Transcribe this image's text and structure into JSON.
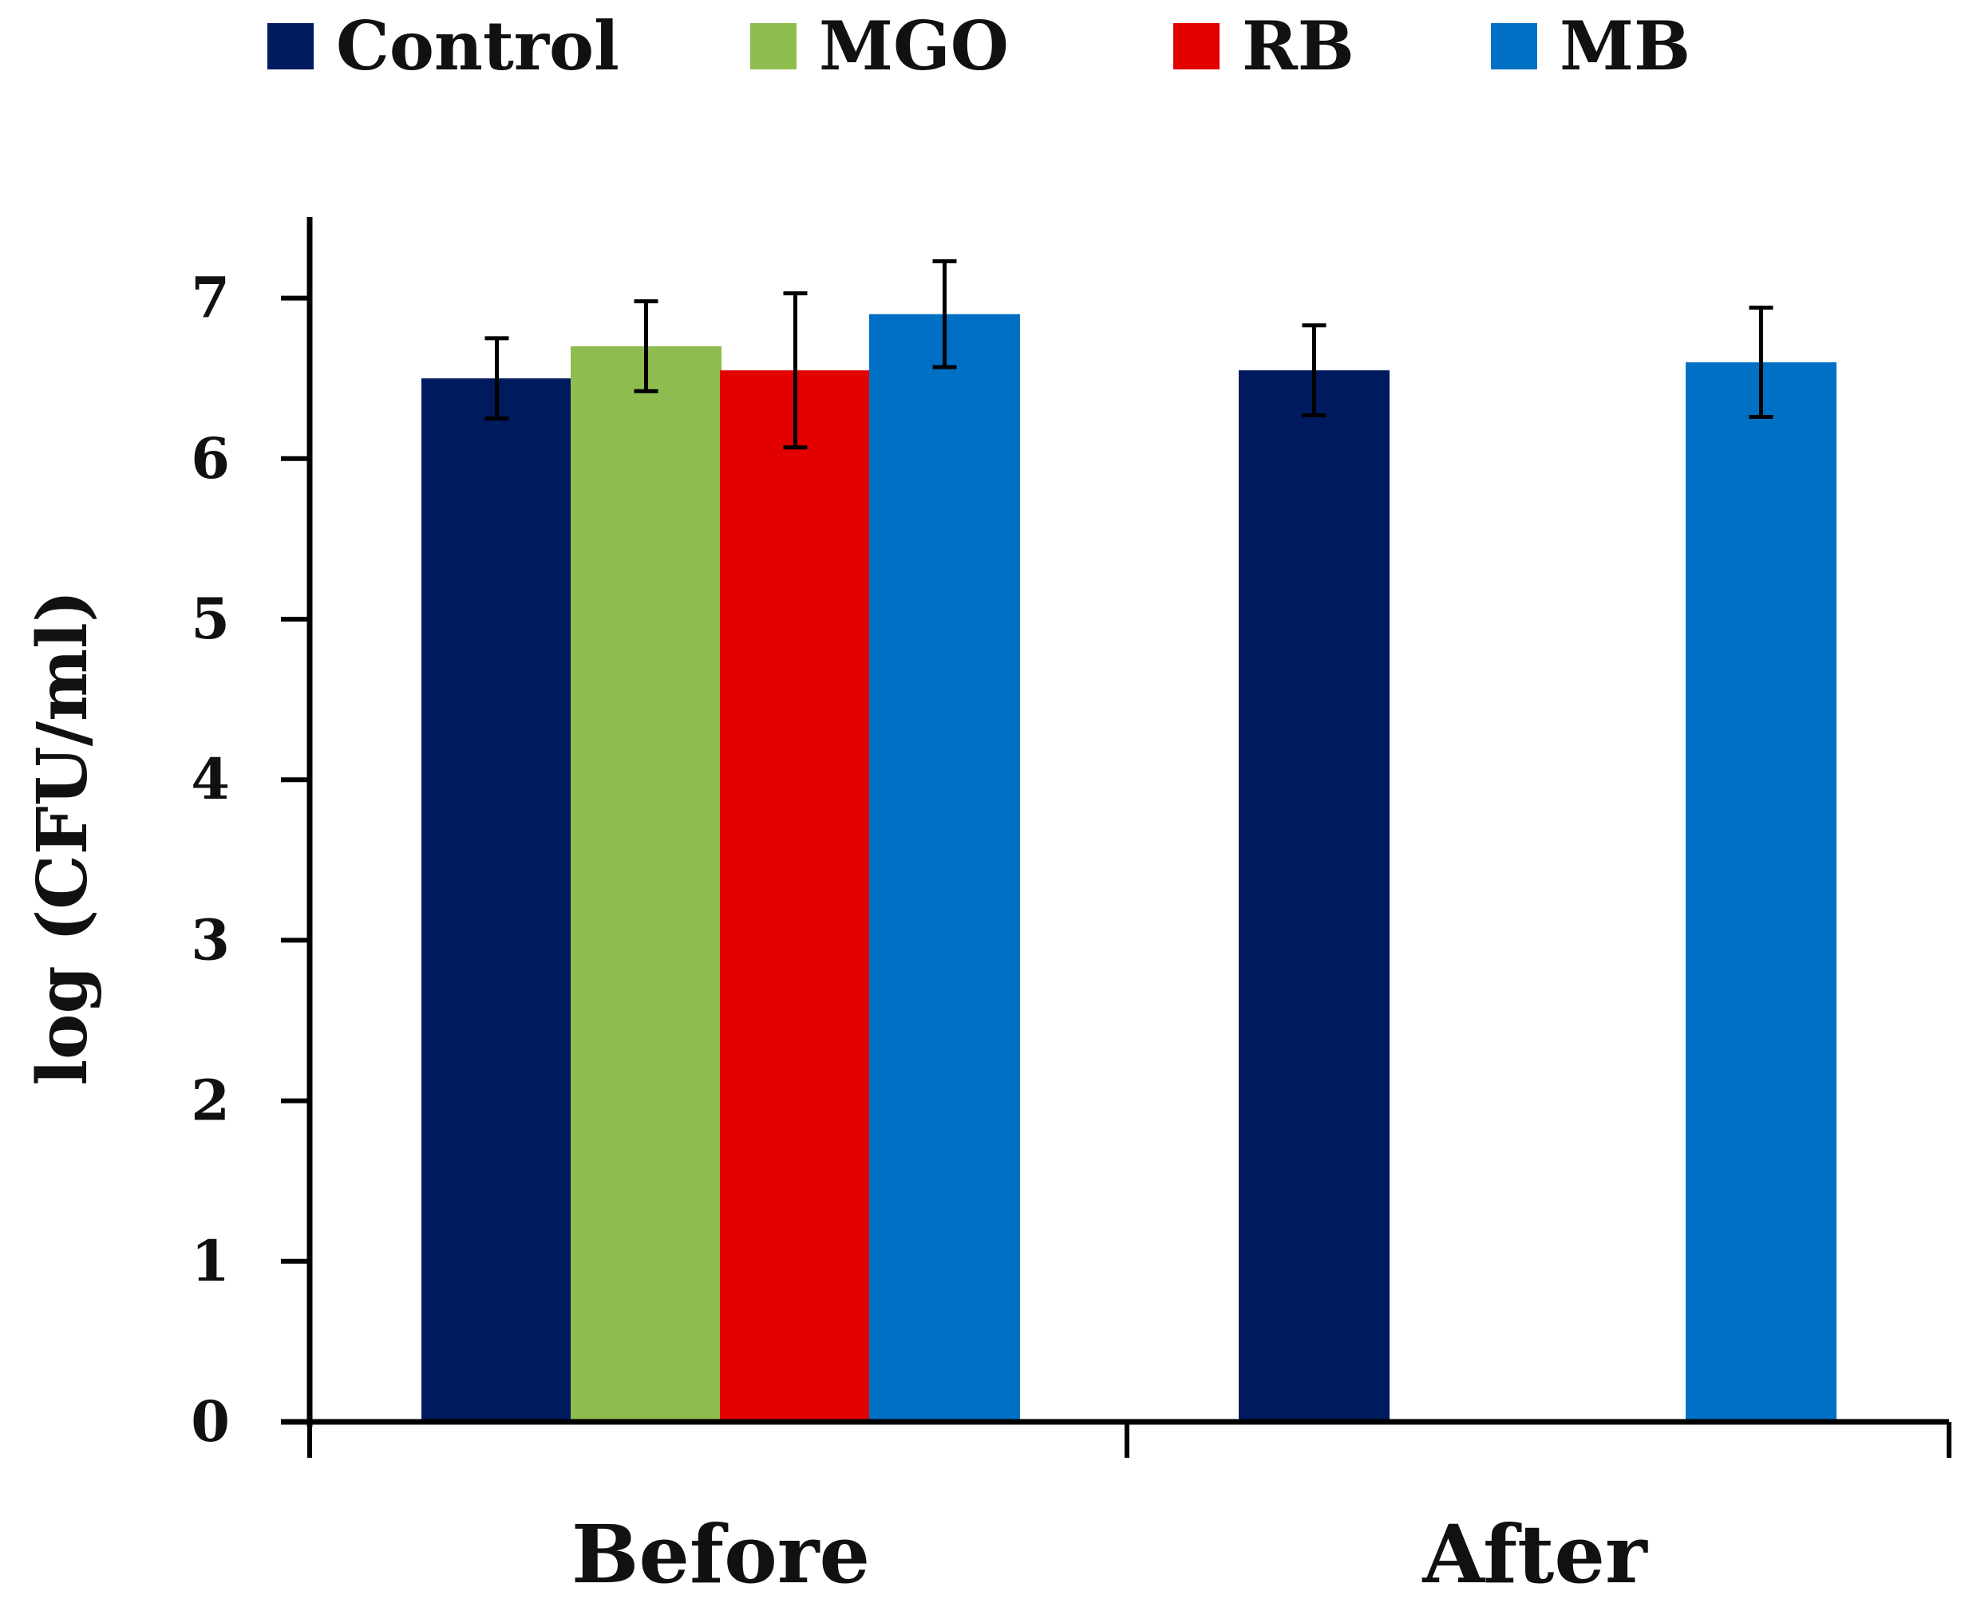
{
  "chart_data": {
    "type": "bar",
    "title": "",
    "xlabel": "",
    "ylabel": "log (CFU/ml)",
    "ylim": [
      0,
      7.5
    ],
    "yticks": [
      "0",
      "1",
      "2",
      "3",
      "4",
      "5",
      "6",
      "7"
    ],
    "categories": [
      "Before",
      "After"
    ],
    "legend_position": "top",
    "grid": false,
    "series": [
      {
        "name": "Control",
        "color": "#001a5e",
        "values": [
          6.5,
          6.55
        ],
        "errors": [
          0.25,
          0.28
        ]
      },
      {
        "name": "MGO",
        "color": "#8fbc4f",
        "values": [
          6.7,
          null
        ],
        "errors": [
          0.28,
          null
        ]
      },
      {
        "name": "RB",
        "color": "#e20000",
        "values": [
          6.55,
          null
        ],
        "errors": [
          0.48,
          null
        ]
      },
      {
        "name": "MB",
        "color": "#0070c4",
        "values": [
          6.9,
          6.6
        ],
        "errors": [
          0.33,
          0.34
        ]
      }
    ]
  }
}
